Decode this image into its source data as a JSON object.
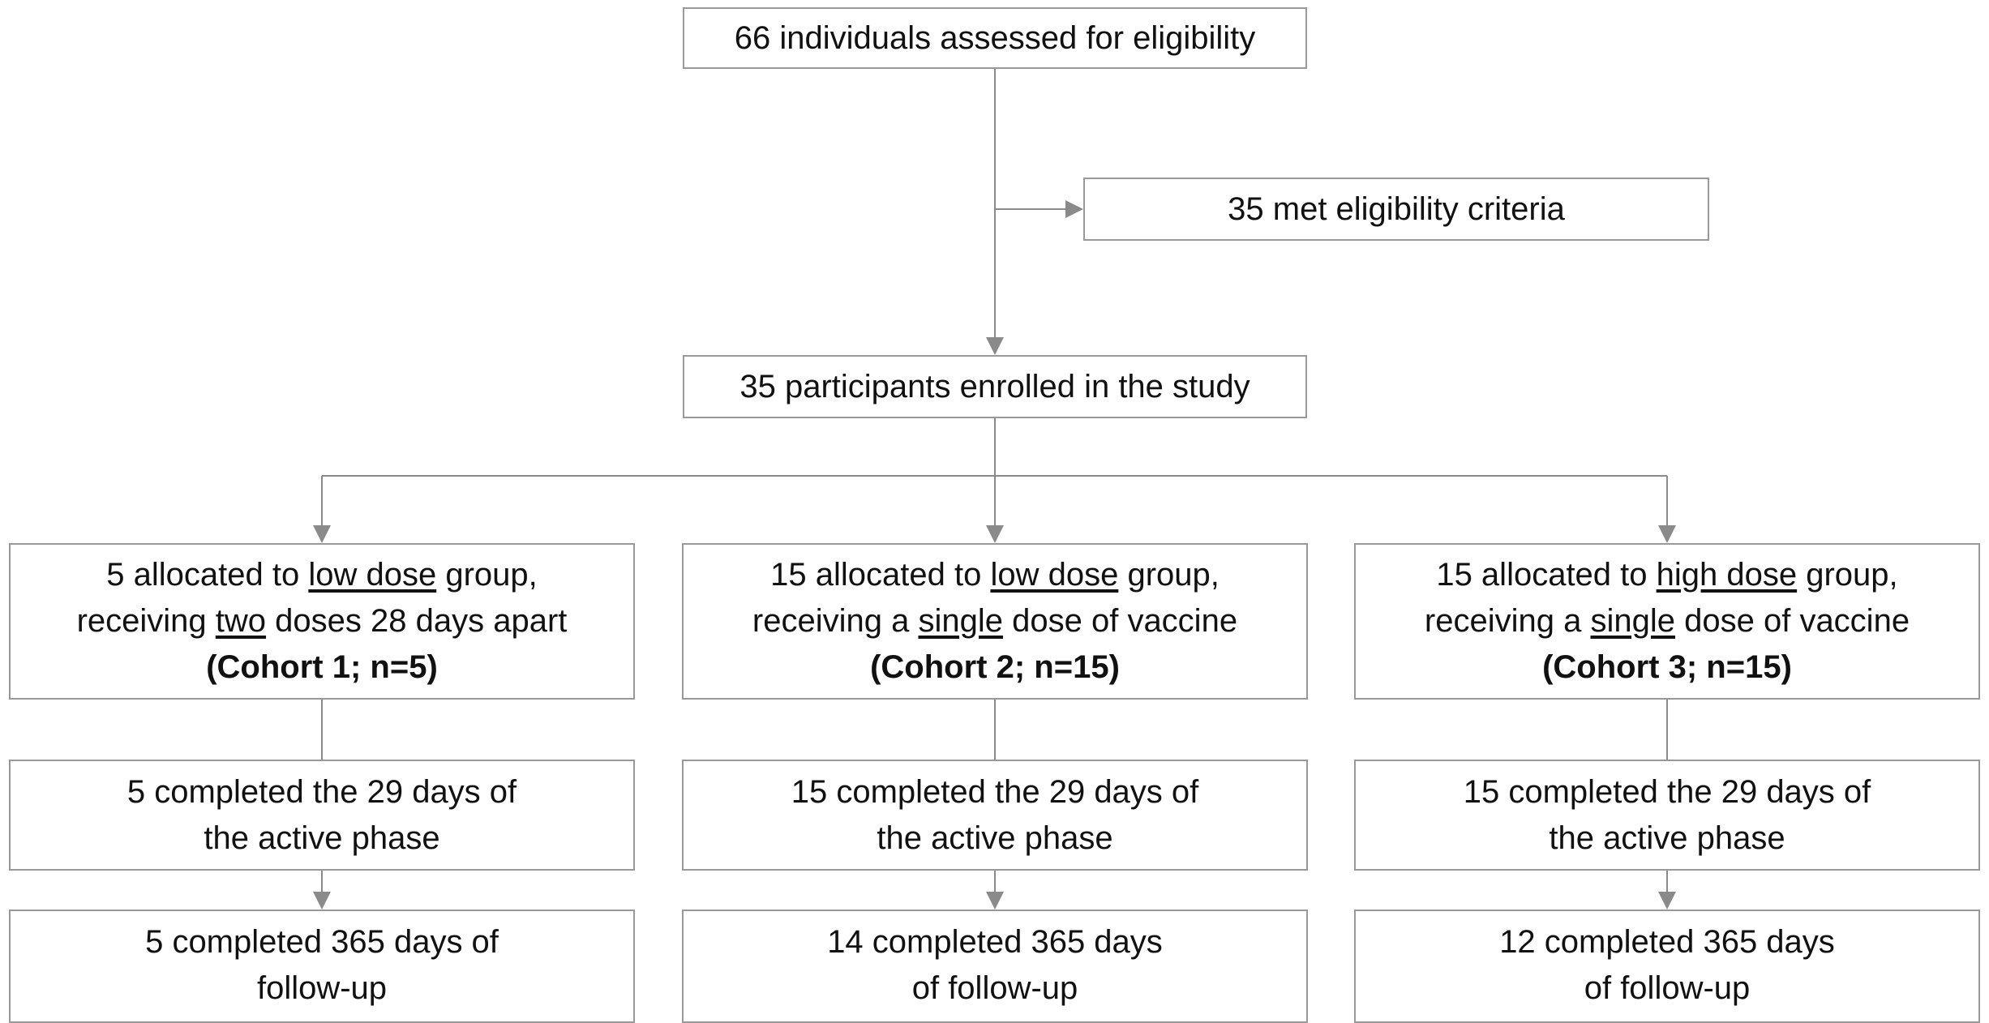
{
  "screening": {
    "assessed": "66 individuals assessed for eligibility",
    "eligible": "35 met eligibility criteria",
    "enrolled": "35 participants enrolled in the study"
  },
  "cohorts": [
    {
      "allocation": [
        [
          "5 allocated to ",
          {
            "text": "low dose",
            "underline": true
          },
          " group,"
        ],
        [
          "receiving ",
          {
            "text": "two",
            "underline": true
          },
          " doses 28 days apart"
        ]
      ],
      "label": "(Cohort 1; n=5)",
      "active_phase": [
        "5 completed the 29 days of",
        "the active phase"
      ],
      "follow_up": [
        "5 completed 365 days of",
        "follow-up"
      ]
    },
    {
      "allocation": [
        [
          "15 allocated to ",
          {
            "text": "low dose",
            "underline": true
          },
          " group,"
        ],
        [
          "receiving a ",
          {
            "text": "single",
            "underline": true
          },
          " dose of vaccine"
        ]
      ],
      "label": "(Cohort 2; n=15)",
      "active_phase": [
        "15 completed the 29 days of",
        "the active phase"
      ],
      "follow_up": [
        "14 completed 365 days",
        "of follow-up"
      ]
    },
    {
      "allocation": [
        [
          "15 allocated to ",
          {
            "text": "high dose",
            "underline": true
          },
          " group,"
        ],
        [
          "receiving a ",
          {
            "text": "single",
            "underline": true
          },
          " dose of vaccine"
        ]
      ],
      "label": "(Cohort 3; n=15)",
      "active_phase": [
        "15 completed the 29 days of",
        "the active phase"
      ],
      "follow_up": [
        "12 completed 365 days",
        "of follow-up"
      ]
    }
  ]
}
